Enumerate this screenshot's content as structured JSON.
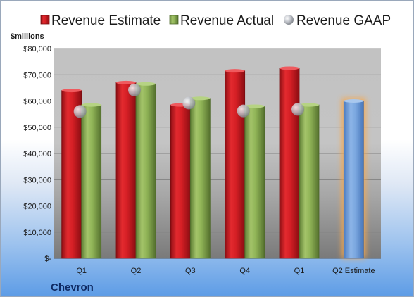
{
  "company": "Chevron",
  "chart_data": {
    "type": "bar",
    "units": "$millions",
    "categories": [
      "Q1",
      "Q2",
      "Q3",
      "Q4",
      "Q1",
      "Q2 Estimate"
    ],
    "series": [
      {
        "name": "Revenue Estimate",
        "color": "#c8161d",
        "values": [
          64000,
          67000,
          58500,
          71500,
          72500,
          null
        ]
      },
      {
        "name": "Revenue Actual",
        "color": "#7fa34a",
        "values": [
          58500,
          66500,
          61000,
          58000,
          58500,
          60000
        ]
      },
      {
        "name": "Revenue GAAP",
        "color": "#b9bcc2",
        "values": [
          56000,
          64200,
          59200,
          56200,
          56800,
          null
        ]
      }
    ],
    "highlight_color": "#6f9ed8",
    "glow_color": "#f7a84d",
    "ylim": [
      0,
      80000
    ],
    "yticks": [
      0,
      10000,
      20000,
      30000,
      40000,
      50000,
      60000,
      70000,
      80000
    ],
    "ytick_labels": [
      "$-",
      "$10,000",
      "$20,000",
      "$30,000",
      "$40,000",
      "$50,000",
      "$60,000",
      "$70,000",
      "$80,000"
    ],
    "grid": true,
    "legend": "top"
  }
}
